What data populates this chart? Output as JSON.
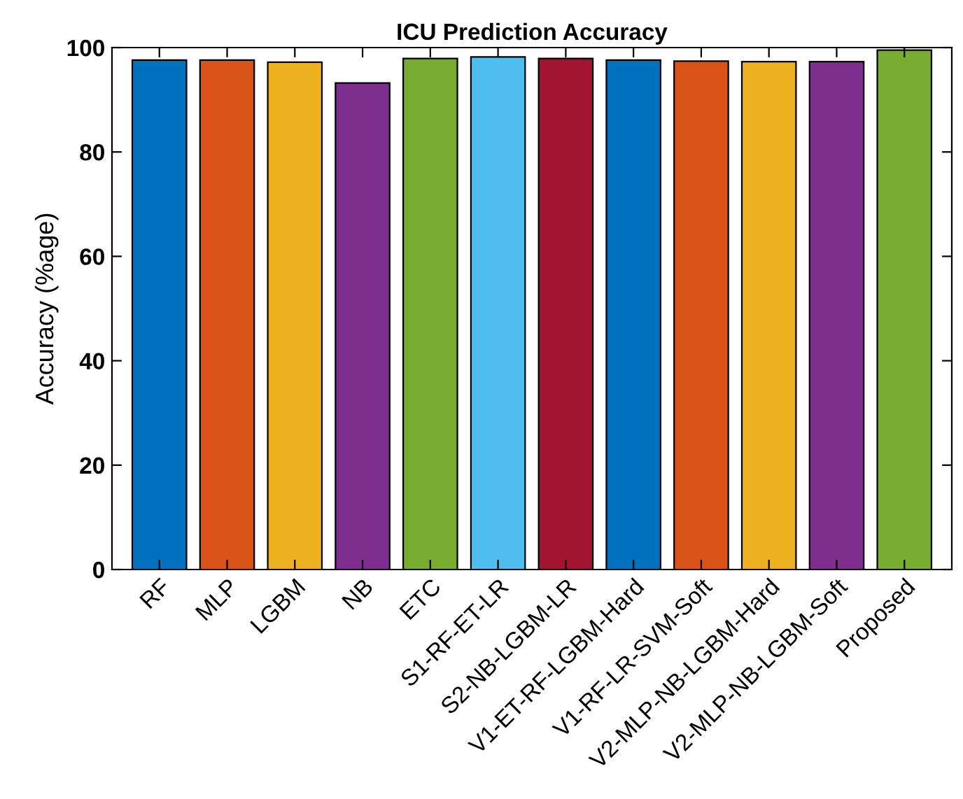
{
  "chart_data": {
    "type": "bar",
    "title": "ICU Prediction Accuracy",
    "ylabel": "Accuracy (%age)",
    "categories": [
      "RF",
      "MLP",
      "LGBM",
      "NB",
      "ETC",
      "S1-RF-ET-LR",
      "S2-NB-LGBM-LR",
      "V1-ET-RF-LGBM-Hard",
      "V1-RF-LR-SVM-Soft",
      "V2-MLP-NB-LGBM-Hard",
      "V2-MLP-NB-LGBM-Soft",
      "Proposed"
    ],
    "values": [
      97.6,
      97.6,
      97.2,
      93.2,
      97.9,
      98.2,
      97.9,
      97.6,
      97.4,
      97.3,
      97.3,
      99.5
    ],
    "colors": [
      "#0072bd",
      "#d95319",
      "#edb120",
      "#7e2f8e",
      "#77ac30",
      "#4dbeee",
      "#a2142f",
      "#0072bd",
      "#d95319",
      "#edb120",
      "#7e2f8e",
      "#77ac30"
    ],
    "ylim": [
      0,
      100
    ],
    "yticks": [
      0,
      20,
      40,
      60,
      80,
      100
    ],
    "grid": false,
    "legend": false
  }
}
